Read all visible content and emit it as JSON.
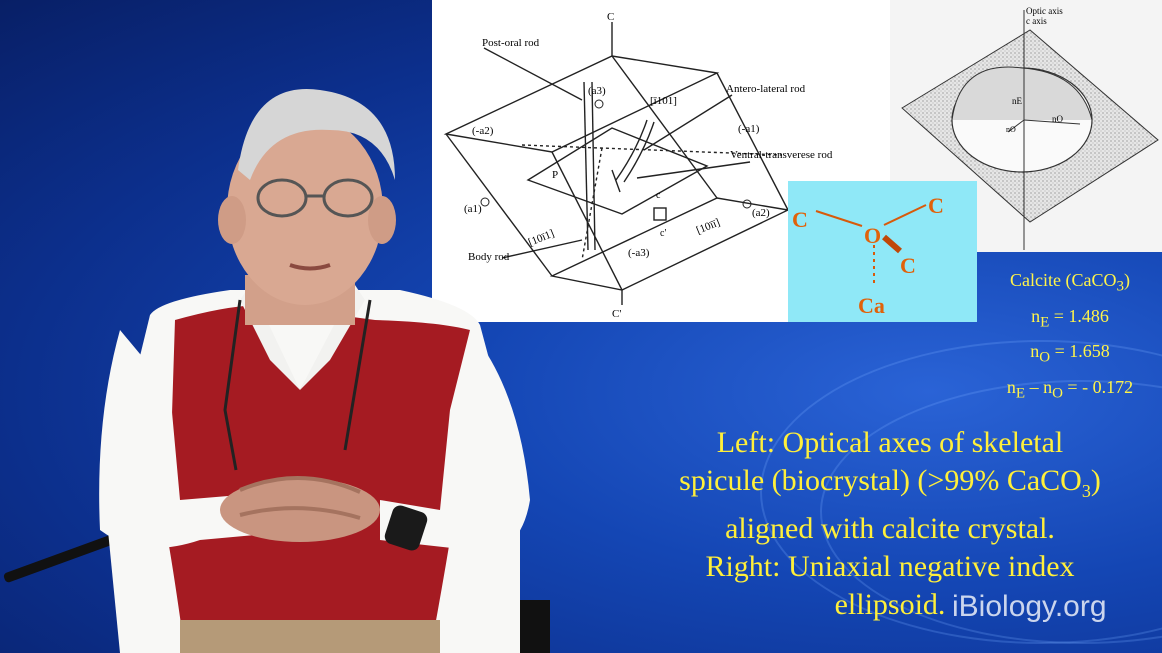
{
  "crystal_diagram": {
    "labels": {
      "c_top": "C",
      "c_bottom": "C'",
      "post_oral": "Post-oral rod",
      "antero_lateral": "Antero-lateral rod",
      "ventral_transverse": "Ventral-transverese rod",
      "body_rod": "Body rod",
      "a3_top": "(a3)",
      "a3_bottom": "(-a3)",
      "neg_a2": "(-a2)",
      "neg_a1": "(-a1)",
      "a1": "(a1)",
      "a2": "(a2)",
      "miller_top": "[ī101]",
      "miller_left": "[10ī1]",
      "miller_right": "[10īī]",
      "p_label": "P",
      "c_small": "c",
      "c_prime_small": "c'"
    }
  },
  "ellipsoid_diagram": {
    "optic_axis": "Optic axis",
    "c_axis": "c axis",
    "n_e": "nE",
    "n_o_small": "nO",
    "n_o_right": "nO"
  },
  "molecule": {
    "c_left": "C",
    "o_center": "O",
    "c_right": "C",
    "c_bottom": "C",
    "ca": "Ca"
  },
  "calcite": {
    "title": "Calcite (CaCO",
    "title_sub": "3",
    "title_end": ")",
    "ne_label": "n",
    "ne_sub": "E",
    "ne_value": " = 1.486",
    "no_label": "n",
    "no_sub": "O",
    "no_value": " = 1.658",
    "diff_a": "n",
    "diff_a_sub": "E",
    "diff_mid": " – n",
    "diff_b_sub": "O",
    "diff_value": " = - 0.172"
  },
  "caption": {
    "line1": "Left: Optical axes of skeletal",
    "line2_a": "spicule (biocrystal) (>99% CaCO",
    "line2_sub": "3",
    "line2_b": ")",
    "line3": "aligned with calcite crystal.",
    "line4": "Right: Uniaxial negative index",
    "line5": "ellipsoid."
  },
  "watermark": "iBiology.org",
  "colors": {
    "background": "#1446b4",
    "caption_yellow": "#ffef3a",
    "molecule_bg": "#8fe8f7",
    "atom_orange": "#e0620a"
  }
}
